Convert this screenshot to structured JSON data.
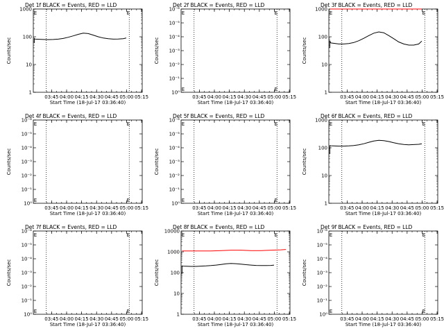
{
  "chart_data": [
    {
      "type": "line",
      "title": "Det 1f BLACK = Events, RED = LLD",
      "xlabel": "Start Time (18-Jul-17 03:36:40)",
      "ylabel": "Counts/sec",
      "yscale": "log",
      "ytick_labels": [
        "1",
        "10",
        "100",
        "1000"
      ],
      "yticks": [
        1,
        10,
        100,
        1000
      ],
      "ylim": [
        1,
        1000
      ],
      "xtick_labels": [
        "03:45",
        "04:00",
        "04:15",
        "04:30",
        "04:45",
        "05:00",
        "05:15"
      ],
      "xlim_min": [
        -10,
        99
      ],
      "xticks_min": [
        8.33,
        23.33,
        38.33,
        53.33,
        68.33,
        83.33,
        98.33
      ],
      "dotted_x_min": [
        3,
        86
      ],
      "marker": "E",
      "marker_x_min": [
        -9.5,
        83.5
      ],
      "series": [
        {
          "name": "Events",
          "color": "#000000",
          "x": [
            -9,
            -9,
            -8,
            0,
            5,
            10,
            15,
            20,
            25,
            30,
            35,
            40,
            45,
            50,
            55,
            60,
            65,
            70,
            75,
            80,
            83
          ],
          "y": [
            60,
            85,
            82,
            80,
            79,
            80,
            82,
            87,
            96,
            108,
            122,
            135,
            130,
            115,
            100,
            90,
            85,
            82,
            83,
            85,
            90
          ]
        }
      ]
    },
    {
      "type": "line",
      "title": "Det 2f BLACK = Events, RED = LLD",
      "xlabel": "Start Time (18-Jul-17 03:36:40)",
      "ylabel": "Counts/sec",
      "yscale": "log",
      "ytick_labels": [
        "10⁰",
        "10⁻¹",
        "10⁻²",
        "10⁻³",
        "10⁻⁴",
        "10⁻⁵",
        "10⁻⁶"
      ],
      "yticks": [
        1,
        0.1,
        0.01,
        0.001,
        0.0001,
        1e-05,
        1e-06
      ],
      "ylim": [
        1,
        1e-06
      ],
      "xtick_labels": [
        "03:45",
        "04:00",
        "04:15",
        "04:30",
        "04:45",
        "05:00",
        "05:15"
      ],
      "xlim_min": [
        -10,
        99
      ],
      "xticks_min": [
        8.33,
        23.33,
        38.33,
        53.33,
        68.33,
        83.33,
        98.33
      ],
      "dotted_x_min": [
        3,
        86
      ],
      "marker": "E",
      "marker_x_min": [
        -9.5,
        83.5
      ],
      "series": []
    },
    {
      "type": "line",
      "title": "Det 3f BLACK = Events, RED = LLD",
      "xlabel": "Start Time (18-Jul-17 03:36:40)",
      "ylabel": "Counts/sec",
      "yscale": "log",
      "ytick_labels": [
        "1",
        "10",
        "100",
        "1000"
      ],
      "yticks": [
        1,
        10,
        100,
        1000
      ],
      "ylim": [
        1,
        1000
      ],
      "xtick_labels": [
        "03:45",
        "04:00",
        "04:15",
        "04:30",
        "04:45",
        "05:00",
        "05:15"
      ],
      "xlim_min": [
        -10,
        99
      ],
      "xticks_min": [
        8.33,
        23.33,
        38.33,
        53.33,
        68.33,
        83.33,
        98.33
      ],
      "dotted_x_min": [
        3,
        86
      ],
      "marker": "E",
      "marker_x_min": [
        -9.5,
        83.5
      ],
      "series": [
        {
          "name": "LLD",
          "color": "#ff0000",
          "x": [
            -9,
            0,
            10,
            20,
            30,
            40,
            50,
            60,
            70,
            80,
            83
          ],
          "y": [
            1000,
            1000,
            1000,
            1000,
            1000,
            1000,
            1000,
            1000,
            1000,
            1000,
            1000
          ]
        },
        {
          "name": "Events",
          "color": "#000000",
          "x": [
            -9,
            -9,
            -8,
            0,
            5,
            10,
            15,
            20,
            25,
            30,
            35,
            40,
            45,
            50,
            55,
            60,
            65,
            70,
            75,
            80,
            83
          ],
          "y": [
            40,
            70,
            60,
            55,
            55,
            57,
            62,
            72,
            88,
            110,
            135,
            150,
            140,
            110,
            85,
            65,
            55,
            50,
            50,
            55,
            70
          ]
        }
      ]
    },
    {
      "type": "line",
      "title": "Det 4f BLACK = Events, RED = LLD",
      "xlabel": "Start Time (18-Jul-17 03:36:40)",
      "ylabel": "Counts/sec",
      "yscale": "log",
      "ytick_labels": [
        "10⁰",
        "10⁻¹",
        "10⁻²",
        "10⁻³",
        "10⁻⁴",
        "10⁻⁵",
        "10⁻⁶"
      ],
      "yticks": [
        1,
        0.1,
        0.01,
        0.001,
        0.0001,
        1e-05,
        1e-06
      ],
      "ylim": [
        1,
        1e-06
      ],
      "xtick_labels": [
        "03:45",
        "04:00",
        "04:15",
        "04:30",
        "04:45",
        "05:00",
        "05:15"
      ],
      "xlim_min": [
        -10,
        99
      ],
      "xticks_min": [
        8.33,
        23.33,
        38.33,
        53.33,
        68.33,
        83.33,
        98.33
      ],
      "dotted_x_min": [
        3,
        86
      ],
      "marker": "E",
      "marker_x_min": [
        -9.5,
        83.5
      ],
      "series": []
    },
    {
      "type": "line",
      "title": "Det 5f BLACK = Events, RED = LLD",
      "xlabel": "Start Time (18-Jul-17 03:36:40)",
      "ylabel": "Counts/sec",
      "yscale": "log",
      "ytick_labels": [
        "10⁰",
        "10⁻¹",
        "10⁻²",
        "10⁻³",
        "10⁻⁴",
        "10⁻⁵",
        "10⁻⁶"
      ],
      "yticks": [
        1,
        0.1,
        0.01,
        0.001,
        0.0001,
        1e-05,
        1e-06
      ],
      "ylim": [
        1,
        1e-06
      ],
      "xtick_labels": [
        "03:45",
        "04:00",
        "04:15",
        "04:30",
        "04:45",
        "05:00",
        "05:15"
      ],
      "xlim_min": [
        -10,
        99
      ],
      "xticks_min": [
        8.33,
        23.33,
        38.33,
        53.33,
        68.33,
        83.33,
        98.33
      ],
      "dotted_x_min": [
        3,
        86
      ],
      "marker": "E",
      "marker_x_min": [
        -9.5,
        83.5
      ],
      "series": []
    },
    {
      "type": "line",
      "title": "Det 6f BLACK = Events, RED = LLD",
      "xlabel": "Start Time (18-Jul-17 03:36:40)",
      "ylabel": "Counts/sec",
      "yscale": "log",
      "ytick_labels": [
        "1",
        "10",
        "100",
        "1000"
      ],
      "yticks": [
        1,
        10,
        100,
        1000
      ],
      "ylim": [
        1,
        1000
      ],
      "xtick_labels": [
        "03:45",
        "04:00",
        "04:15",
        "04:30",
        "04:45",
        "05:00",
        "05:15"
      ],
      "xlim_min": [
        -10,
        99
      ],
      "xticks_min": [
        8.33,
        23.33,
        38.33,
        53.33,
        68.33,
        83.33,
        98.33
      ],
      "dotted_x_min": [
        3,
        86
      ],
      "marker": "E",
      "marker_x_min": [
        -9.5,
        83.5
      ],
      "series": [
        {
          "name": "Events",
          "color": "#000000",
          "x": [
            -9,
            -9,
            -8,
            0,
            5,
            10,
            15,
            20,
            25,
            30,
            35,
            40,
            45,
            50,
            55,
            60,
            65,
            70,
            75,
            80,
            83
          ],
          "y": [
            60,
            120,
            118,
            115,
            115,
            117,
            120,
            128,
            140,
            158,
            175,
            185,
            180,
            168,
            152,
            140,
            132,
            128,
            130,
            133,
            140
          ]
        }
      ]
    },
    {
      "type": "line",
      "title": "Det 7f BLACK = Events, RED = LLD",
      "xlabel": "Start Time (18-Jul-17 03:36:40)",
      "ylabel": "Counts/sec",
      "yscale": "log",
      "ytick_labels": [
        "10⁰",
        "10⁻¹",
        "10⁻²",
        "10⁻³",
        "10⁻⁴",
        "10⁻⁵",
        "10⁻⁶"
      ],
      "yticks": [
        1,
        0.1,
        0.01,
        0.001,
        0.0001,
        1e-05,
        1e-06
      ],
      "ylim": [
        1,
        1e-06
      ],
      "xtick_labels": [
        "03:45",
        "04:00",
        "04:15",
        "04:30",
        "04:45",
        "05:00",
        "05:15"
      ],
      "xlim_min": [
        -10,
        99
      ],
      "xticks_min": [
        8.33,
        23.33,
        38.33,
        53.33,
        68.33,
        83.33,
        98.33
      ],
      "dotted_x_min": [
        3,
        86
      ],
      "marker": "E",
      "marker_x_min": [
        -9.5,
        83.5
      ],
      "series": []
    },
    {
      "type": "line",
      "title": "Det 8f BLACK = Events, RED = LLD",
      "xlabel": "Start Time (18-Jul-17 03:36:40)",
      "ylabel": "Counts/sec",
      "yscale": "log",
      "ytick_labels": [
        "1",
        "10",
        "100",
        "1000",
        "10000"
      ],
      "yticks": [
        1,
        10,
        100,
        1000,
        10000
      ],
      "ylim": [
        1,
        10000
      ],
      "xtick_labels": [
        "03:45",
        "04:00",
        "04:15",
        "04:30",
        "04:45",
        "05:00",
        "05:15"
      ],
      "xlim_min": [
        -10,
        99
      ],
      "xticks_min": [
        8.33,
        23.33,
        38.33,
        53.33,
        68.33,
        83.33,
        98.33
      ],
      "dotted_x_min": [
        3,
        86
      ],
      "marker": "E",
      "marker_x_min": [
        -9.5,
        83.5
      ],
      "series": [
        {
          "name": "LLD",
          "color": "#ff0000",
          "x": [
            -9,
            0,
            10,
            20,
            30,
            40,
            50,
            60,
            70,
            80,
            90,
            95
          ],
          "y": [
            1100,
            1100,
            1100,
            1100,
            1150,
            1200,
            1200,
            1150,
            1150,
            1200,
            1250,
            1300
          ]
        },
        {
          "name": "Events",
          "color": "#000000",
          "x": [
            -9,
            -9,
            -8,
            0,
            5,
            10,
            15,
            20,
            25,
            30,
            35,
            40,
            45,
            50,
            55,
            60,
            65,
            70,
            75,
            80,
            83
          ],
          "y": [
            90,
            210,
            205,
            200,
            200,
            205,
            210,
            218,
            230,
            248,
            265,
            275,
            270,
            258,
            242,
            230,
            222,
            218,
            220,
            223,
            230
          ]
        }
      ]
    },
    {
      "type": "line",
      "title": "Det 9f BLACK = Events, RED = LLD",
      "xlabel": "Start Time (18-Jul-17 03:36:40)",
      "ylabel": "Counts/sec",
      "yscale": "log",
      "ytick_labels": [
        "10⁰",
        "10⁻¹",
        "10⁻²",
        "10⁻³",
        "10⁻⁴",
        "10⁻⁵",
        "10⁻⁶"
      ],
      "yticks": [
        1,
        0.1,
        0.01,
        0.001,
        0.0001,
        1e-05,
        1e-06
      ],
      "ylim": [
        1,
        1e-06
      ],
      "xtick_labels": [
        "03:45",
        "04:00",
        "04:15",
        "04:30",
        "04:45",
        "05:00",
        "05:15"
      ],
      "xlim_min": [
        -10,
        99
      ],
      "xticks_min": [
        8.33,
        23.33,
        38.33,
        53.33,
        68.33,
        83.33,
        98.33
      ],
      "dotted_x_min": [
        3,
        86
      ],
      "marker": "E",
      "marker_x_min": [
        -9.5,
        83.5
      ],
      "series": []
    }
  ]
}
